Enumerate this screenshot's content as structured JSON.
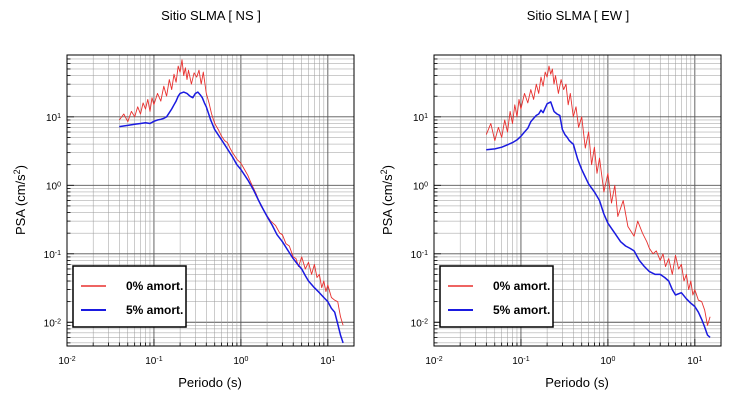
{
  "chart_data": [
    {
      "type": "line",
      "title": "Sitio SLMA [ NS ]",
      "xlabel": "Periodo (s)",
      "ylabel": "PSA (cm/s",
      "ylabel_sup": "2",
      "ylabel_close": ")",
      "x_scale": "log",
      "y_scale": "log",
      "xlim": [
        0.01,
        20
      ],
      "ylim": [
        0.0045,
        80
      ],
      "grid": true,
      "legend_position": "bottom-left",
      "x_ticks": [
        {
          "base": "10",
          "exp": "-2"
        },
        {
          "base": "10",
          "exp": "-1"
        },
        {
          "base": "10",
          "exp": "0"
        },
        {
          "base": "10",
          "exp": "1"
        }
      ],
      "y_ticks": [
        {
          "base": "10",
          "exp": "-2"
        },
        {
          "base": "10",
          "exp": "-1"
        },
        {
          "base": "10",
          "exp": "0"
        },
        {
          "base": "10",
          "exp": "1"
        }
      ],
      "series": [
        {
          "name": "0% amort.",
          "color": "#e8312f",
          "x": [
            0.04,
            0.045,
            0.05,
            0.055,
            0.06,
            0.065,
            0.07,
            0.075,
            0.08,
            0.085,
            0.09,
            0.095,
            0.1,
            0.11,
            0.12,
            0.13,
            0.14,
            0.15,
            0.16,
            0.17,
            0.18,
            0.19,
            0.2,
            0.21,
            0.22,
            0.23,
            0.24,
            0.25,
            0.27,
            0.29,
            0.31,
            0.33,
            0.35,
            0.37,
            0.4,
            0.43,
            0.46,
            0.5,
            0.55,
            0.6,
            0.65,
            0.7,
            0.75,
            0.8,
            0.9,
            1.0,
            1.1,
            1.2,
            1.3,
            1.5,
            1.7,
            2.0,
            2.2,
            2.5,
            2.8,
            3.0,
            3.3,
            3.6,
            4.0,
            4.3,
            4.6,
            5.0,
            5.5,
            6.0,
            6.5,
            7.0,
            7.5,
            8.0,
            8.5,
            9.0,
            9.5,
            10.0,
            11.0,
            12.0,
            13.0,
            14.0,
            15.0
          ],
          "values": [
            9,
            11,
            8.5,
            12,
            10,
            14,
            11,
            16,
            13,
            18,
            12,
            19,
            15,
            22,
            17,
            28,
            20,
            35,
            25,
            42,
            32,
            55,
            45,
            68,
            40,
            52,
            35,
            48,
            30,
            44,
            38,
            48,
            30,
            45,
            22,
            16,
            11,
            8,
            6.5,
            5.2,
            4.5,
            4.2,
            3.5,
            3.0,
            2.4,
            2.1,
            1.7,
            1.4,
            1.1,
            0.75,
            0.5,
            0.36,
            0.3,
            0.26,
            0.2,
            0.19,
            0.14,
            0.13,
            0.09,
            0.085,
            0.065,
            0.09,
            0.06,
            0.075,
            0.05,
            0.07,
            0.045,
            0.05,
            0.032,
            0.04,
            0.028,
            0.035,
            0.023,
            0.021,
            0.02,
            0.012,
            0.009
          ]
        },
        {
          "name": "5% amort.",
          "color": "#1a1ae0",
          "x": [
            0.04,
            0.05,
            0.06,
            0.07,
            0.08,
            0.09,
            0.1,
            0.11,
            0.12,
            0.13,
            0.14,
            0.15,
            0.16,
            0.17,
            0.18,
            0.19,
            0.2,
            0.22,
            0.24,
            0.26,
            0.28,
            0.3,
            0.32,
            0.34,
            0.36,
            0.38,
            0.4,
            0.45,
            0.5,
            0.6,
            0.7,
            0.8,
            0.9,
            1.0,
            1.2,
            1.4,
            1.6,
            1.8,
            2.0,
            2.3,
            2.6,
            3.0,
            3.5,
            4.0,
            4.5,
            5.0,
            5.5,
            6.0,
            7.0,
            8.0,
            9.0,
            10.0,
            11.0,
            12.0,
            13.0,
            14.0,
            15.0
          ],
          "values": [
            7.2,
            7.5,
            7.8,
            8.0,
            8.2,
            8.0,
            8.6,
            9.0,
            9.2,
            9.5,
            10.0,
            11.5,
            13,
            15,
            17,
            20,
            22,
            23,
            22,
            20,
            19,
            22,
            23,
            21,
            19,
            16,
            14,
            9,
            6.5,
            4.6,
            3.4,
            2.6,
            2.0,
            1.7,
            1.2,
            0.85,
            0.6,
            0.45,
            0.35,
            0.26,
            0.19,
            0.15,
            0.11,
            0.085,
            0.07,
            0.06,
            0.048,
            0.04,
            0.032,
            0.027,
            0.023,
            0.02,
            0.016,
            0.014,
            0.0095,
            0.0065,
            0.005
          ]
        }
      ]
    },
    {
      "type": "line",
      "title": "Sitio SLMA [ EW ]",
      "xlabel": "Periodo (s)",
      "ylabel": "PSA (cm/s",
      "ylabel_sup": "2",
      "ylabel_close": ")",
      "x_scale": "log",
      "y_scale": "log",
      "xlim": [
        0.01,
        20
      ],
      "ylim": [
        0.0045,
        80
      ],
      "grid": true,
      "legend_position": "bottom-left",
      "x_ticks": [
        {
          "base": "10",
          "exp": "-2"
        },
        {
          "base": "10",
          "exp": "-1"
        },
        {
          "base": "10",
          "exp": "0"
        },
        {
          "base": "10",
          "exp": "1"
        }
      ],
      "y_ticks": [
        {
          "base": "10",
          "exp": "-2"
        },
        {
          "base": "10",
          "exp": "-1"
        },
        {
          "base": "10",
          "exp": "0"
        },
        {
          "base": "10",
          "exp": "1"
        }
      ],
      "series": [
        {
          "name": "0% amort.",
          "color": "#e8312f",
          "x": [
            0.04,
            0.045,
            0.05,
            0.055,
            0.06,
            0.065,
            0.07,
            0.075,
            0.08,
            0.085,
            0.09,
            0.095,
            0.1,
            0.11,
            0.12,
            0.13,
            0.14,
            0.15,
            0.16,
            0.17,
            0.18,
            0.19,
            0.2,
            0.21,
            0.22,
            0.23,
            0.24,
            0.25,
            0.27,
            0.29,
            0.31,
            0.33,
            0.35,
            0.37,
            0.4,
            0.43,
            0.46,
            0.5,
            0.55,
            0.6,
            0.65,
            0.7,
            0.75,
            0.8,
            0.9,
            1.0,
            1.1,
            1.2,
            1.3,
            1.5,
            1.7,
            2.0,
            2.2,
            2.5,
            2.8,
            3.0,
            3.3,
            3.6,
            4.0,
            4.3,
            4.6,
            5.0,
            5.5,
            6.0,
            6.5,
            7.0,
            7.5,
            8.0,
            8.5,
            9.0,
            9.5,
            10.0,
            11.0,
            12.0,
            13.0,
            14.0,
            15.0
          ],
          "values": [
            5.5,
            8,
            4.5,
            7,
            5,
            9,
            6,
            12,
            8,
            15,
            10,
            18,
            13,
            22,
            16,
            25,
            18,
            30,
            22,
            38,
            28,
            45,
            38,
            55,
            42,
            50,
            30,
            40,
            22,
            35,
            25,
            30,
            15,
            22,
            10,
            14,
            7,
            10,
            3.5,
            6,
            2.0,
            3.6,
            1.5,
            2.5,
            0.8,
            1.5,
            0.55,
            1.0,
            0.35,
            0.6,
            0.25,
            0.18,
            0.3,
            0.2,
            0.15,
            0.12,
            0.1,
            0.11,
            0.08,
            0.1,
            0.065,
            0.085,
            0.05,
            0.095,
            0.06,
            0.07,
            0.04,
            0.05,
            0.03,
            0.04,
            0.025,
            0.03,
            0.021,
            0.02,
            0.015,
            0.009,
            0.012
          ]
        },
        {
          "name": "5% amort.",
          "color": "#1a1ae0",
          "x": [
            0.04,
            0.05,
            0.06,
            0.07,
            0.08,
            0.09,
            0.1,
            0.11,
            0.12,
            0.13,
            0.14,
            0.15,
            0.16,
            0.17,
            0.18,
            0.19,
            0.2,
            0.22,
            0.24,
            0.26,
            0.28,
            0.3,
            0.32,
            0.34,
            0.36,
            0.38,
            0.4,
            0.45,
            0.5,
            0.6,
            0.7,
            0.8,
            0.9,
            1.0,
            1.2,
            1.4,
            1.6,
            1.8,
            2.0,
            2.3,
            2.6,
            3.0,
            3.5,
            4.0,
            4.5,
            5.0,
            5.5,
            6.0,
            7.0,
            8.0,
            9.0,
            10.0,
            11.0,
            12.0,
            13.0,
            14.0,
            15.0
          ],
          "values": [
            3.3,
            3.4,
            3.6,
            3.9,
            4.2,
            4.6,
            5.2,
            6.0,
            6.8,
            8.5,
            9.5,
            10.5,
            11.0,
            12.5,
            11.5,
            13.5,
            15.5,
            16.5,
            12.0,
            11.0,
            10.5,
            6.5,
            5.5,
            5.0,
            4.5,
            4.2,
            4.0,
            2.4,
            1.7,
            1.05,
            0.8,
            0.6,
            0.38,
            0.28,
            0.2,
            0.15,
            0.13,
            0.12,
            0.11,
            0.08,
            0.066,
            0.055,
            0.05,
            0.05,
            0.045,
            0.04,
            0.03,
            0.025,
            0.027,
            0.022,
            0.019,
            0.017,
            0.014,
            0.011,
            0.0085,
            0.0065,
            0.006
          ]
        }
      ]
    }
  ]
}
